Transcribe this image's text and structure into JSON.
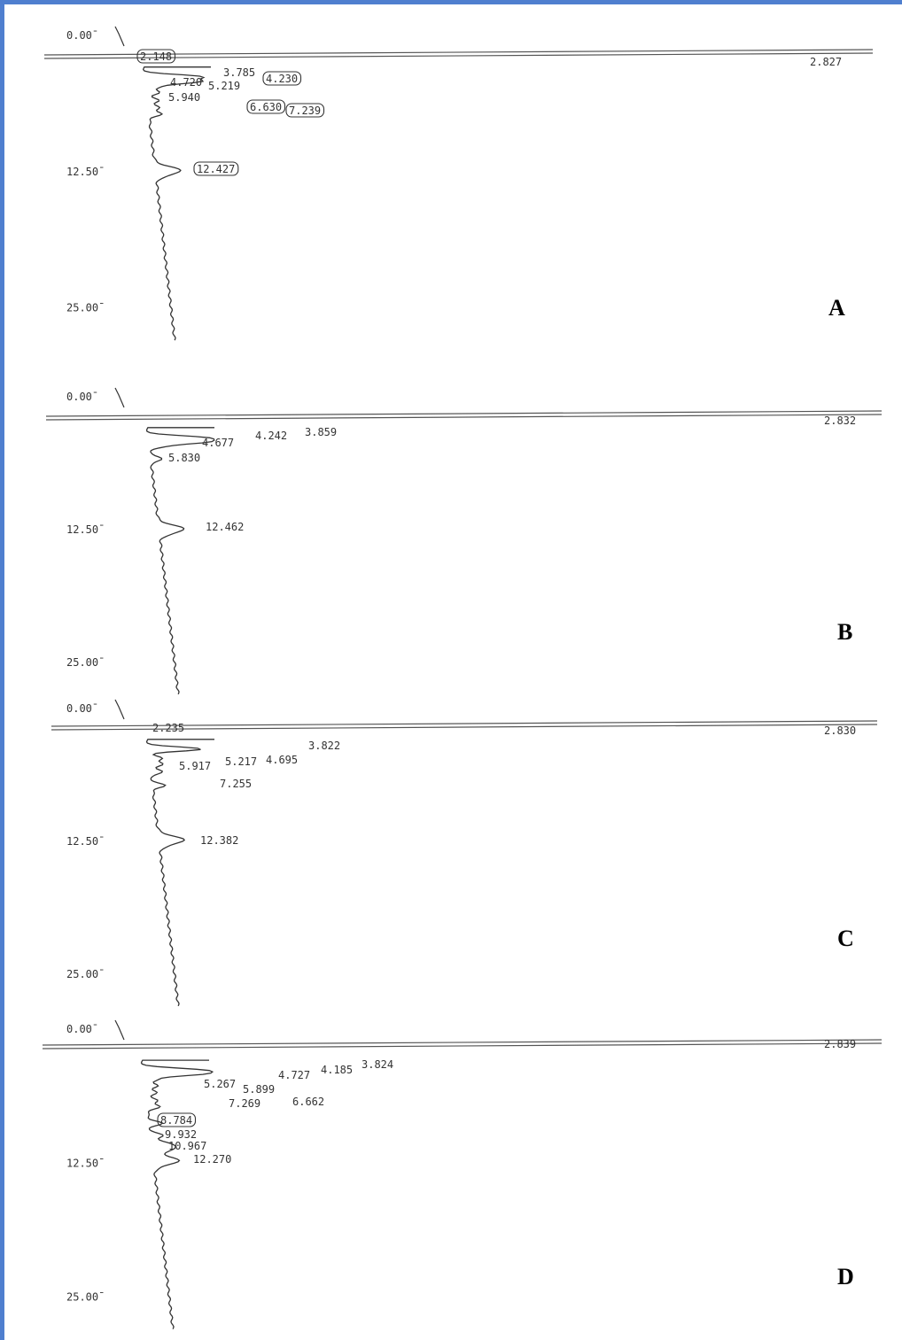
{
  "colors": {
    "frame": "#4f7fcf",
    "ink": "#333333"
  },
  "chart_data": [
    {
      "type": "line",
      "panel": "A",
      "y_ticks": [
        "0.00",
        "12.50",
        "25.00"
      ],
      "ylim": [
        0,
        25
      ],
      "peaks": [
        {
          "rt": 2.148,
          "label": "2.148",
          "boxed": true
        },
        {
          "rt": 2.827,
          "label": "2.827",
          "boxed": false
        },
        {
          "rt": 3.785,
          "label": "3.785",
          "boxed": false
        },
        {
          "rt": 4.23,
          "label": "4.230",
          "boxed": true
        },
        {
          "rt": 4.72,
          "label": "4.720",
          "boxed": false
        },
        {
          "rt": 5.219,
          "label": "5.219",
          "boxed": false
        },
        {
          "rt": 5.94,
          "label": "5.940",
          "boxed": false
        },
        {
          "rt": 6.63,
          "label": "6.630",
          "boxed": true
        },
        {
          "rt": 7.239,
          "label": "7.239",
          "boxed": true
        },
        {
          "rt": 12.427,
          "label": "12.427",
          "boxed": true
        }
      ]
    },
    {
      "type": "line",
      "panel": "B",
      "y_ticks": [
        "0.00",
        "12.50",
        "25.00"
      ],
      "ylim": [
        0,
        25
      ],
      "peaks": [
        {
          "rt": 2.832,
          "label": "2.832",
          "boxed": false
        },
        {
          "rt": 3.859,
          "label": "3.859",
          "boxed": false
        },
        {
          "rt": 4.242,
          "label": "4.242",
          "boxed": false
        },
        {
          "rt": 4.677,
          "label": "4.677",
          "boxed": false
        },
        {
          "rt": 5.83,
          "label": "5.830",
          "boxed": false
        },
        {
          "rt": 12.462,
          "label": "12.462",
          "boxed": false
        }
      ]
    },
    {
      "type": "line",
      "panel": "C",
      "y_ticks": [
        "0.00",
        "12.50",
        "25.00"
      ],
      "ylim": [
        0,
        25
      ],
      "peaks": [
        {
          "rt": 2.235,
          "label": "2.235",
          "boxed": false
        },
        {
          "rt": 2.83,
          "label": "2.830",
          "boxed": false
        },
        {
          "rt": 3.822,
          "label": "3.822",
          "boxed": false
        },
        {
          "rt": 4.695,
          "label": "4.695",
          "boxed": false
        },
        {
          "rt": 5.217,
          "label": "5.217",
          "boxed": false
        },
        {
          "rt": 5.917,
          "label": "5.917",
          "boxed": false
        },
        {
          "rt": 7.255,
          "label": "7.255",
          "boxed": false
        },
        {
          "rt": 12.382,
          "label": "12.382",
          "boxed": false
        }
      ]
    },
    {
      "type": "line",
      "panel": "D",
      "y_ticks": [
        "0.00",
        "12.50",
        "25.00"
      ],
      "ylim": [
        0,
        25
      ],
      "peaks": [
        {
          "rt": 2.839,
          "label": "2.839",
          "boxed": false
        },
        {
          "rt": 3.824,
          "label": "3.824",
          "boxed": false
        },
        {
          "rt": 4.185,
          "label": "4.185",
          "boxed": false
        },
        {
          "rt": 4.727,
          "label": "4.727",
          "boxed": false
        },
        {
          "rt": 5.267,
          "label": "5.267",
          "boxed": false
        },
        {
          "rt": 5.899,
          "label": "5.899",
          "boxed": false
        },
        {
          "rt": 6.662,
          "label": "6.662",
          "boxed": false
        },
        {
          "rt": 7.269,
          "label": "7.269",
          "boxed": false
        },
        {
          "rt": 8.784,
          "label": "8.784",
          "boxed": true
        },
        {
          "rt": 9.932,
          "label": "9.932",
          "boxed": false
        },
        {
          "rt": 10.967,
          "label": "10.967",
          "boxed": false
        },
        {
          "rt": 12.27,
          "label": "12.270",
          "boxed": false
        }
      ]
    }
  ]
}
